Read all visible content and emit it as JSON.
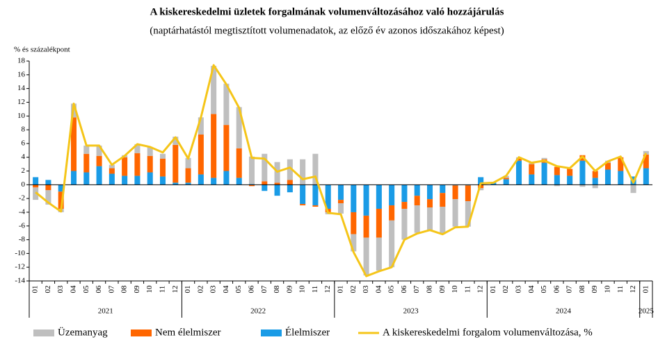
{
  "chart_data": {
    "type": "bar",
    "title": "A kiskereskedelmi  üzletek forgalmának volumenváltozásához való hozzájárulás",
    "subtitle": "(naptárhatástól megtisztított volumenadatok, az előző év azonos időszakához képest)",
    "y_axis_label": "% és százalékpont",
    "categories": [
      "01",
      "02",
      "03",
      "04",
      "05",
      "06",
      "07",
      "08",
      "09",
      "10",
      "11",
      "12",
      "01",
      "02",
      "03",
      "04",
      "05",
      "06",
      "07",
      "08",
      "09",
      "10",
      "11",
      "12",
      "01",
      "02",
      "03",
      "04",
      "05",
      "06",
      "07",
      "08",
      "09",
      "10",
      "11",
      "12",
      "01",
      "02",
      "03",
      "04",
      "05",
      "06",
      "07",
      "08",
      "09",
      "10",
      "11",
      "12",
      "01"
    ],
    "year_labels": [
      "2021",
      "2022",
      "2023",
      "2024",
      "2025"
    ],
    "ylim": [
      -14,
      18
    ],
    "yticks": [
      -14,
      -12,
      -10,
      -8,
      -6,
      -4,
      -2,
      0,
      2,
      4,
      6,
      8,
      10,
      12,
      14,
      16,
      18
    ],
    "stacked": true,
    "series": [
      {
        "name": "Üzemanyag",
        "type": "bar",
        "color": "#bfbfbf",
        "values": [
          -1.8,
          -2.1,
          -0.5,
          2.0,
          1.2,
          1.5,
          0.5,
          0.3,
          1.3,
          1.3,
          0.7,
          1.2,
          1.5,
          2.5,
          7.0,
          6.0,
          6.0,
          4.0,
          4.0,
          3.0,
          3.0,
          3.7,
          4.5,
          -0.3,
          -1.5,
          -2.5,
          -5.5,
          -4.8,
          -6.8,
          -4.5,
          -4.0,
          -3.3,
          -4.0,
          -4.0,
          -3.7,
          -0.3,
          0.0,
          0.3,
          0.2,
          0.3,
          0.2,
          -0.2,
          0.0,
          -0.3,
          -0.5,
          0.3,
          0.0,
          -1.2,
          0.5
        ]
      },
      {
        "name": "Nem élelmiszer",
        "type": "bar",
        "color": "#ff6600",
        "values": [
          -0.4,
          -0.8,
          -2.5,
          7.8,
          2.7,
          1.5,
          0.8,
          2.7,
          3.3,
          2.4,
          2.6,
          5.5,
          2.1,
          5.8,
          9.3,
          6.7,
          4.3,
          -0.2,
          0.5,
          0.3,
          0.7,
          -0.2,
          -0.2,
          -0.5,
          -0.5,
          -3.2,
          -3.2,
          -4.2,
          -2.2,
          -1.0,
          -1.4,
          -1.2,
          -2.0,
          -2.0,
          -2.3,
          -0.5,
          0.0,
          0.2,
          0.3,
          1.5,
          0.5,
          1.2,
          1.0,
          0.8,
          1.0,
          1.0,
          2.0,
          0.0,
          2.0
        ]
      },
      {
        "name": "Élelmiszer",
        "type": "bar",
        "color": "#1a9be6",
        "values": [
          1.1,
          0.7,
          -1.0,
          2.0,
          1.8,
          2.7,
          1.6,
          1.3,
          1.3,
          1.8,
          1.2,
          0.3,
          0.3,
          1.5,
          1.0,
          2.0,
          1.0,
          0.1,
          -0.9,
          -1.6,
          -1.1,
          -2.8,
          -3.0,
          -3.5,
          -2.2,
          -4.0,
          -4.5,
          -3.5,
          -3.0,
          -2.5,
          -1.6,
          -2.1,
          -1.2,
          -0.1,
          -0.1,
          1.1,
          0.3,
          0.8,
          3.5,
          1.5,
          3.2,
          1.4,
          1.3,
          3.5,
          1.0,
          2.2,
          2.0,
          1.2,
          2.4
        ]
      },
      {
        "name": "A kiskereskedelmi forgalom volumenváltozása, %",
        "type": "line",
        "color": "#f5c518",
        "values": [
          -1.1,
          -2.6,
          -3.9,
          11.8,
          5.7,
          5.7,
          2.9,
          4.2,
          5.9,
          5.5,
          4.7,
          6.9,
          3.8,
          9.8,
          17.4,
          14.6,
          11.2,
          3.9,
          3.8,
          1.9,
          2.5,
          0.8,
          1.2,
          -4.1,
          -4.3,
          -9.8,
          -13.3,
          -12.6,
          -12.0,
          -8.0,
          -7.1,
          -6.6,
          -7.2,
          -6.2,
          -6.1,
          0.2,
          0.3,
          1.3,
          4.0,
          3.2,
          3.5,
          2.7,
          2.4,
          4.1,
          2.0,
          3.4,
          4.1,
          0.3,
          4.6
        ]
      }
    ]
  }
}
